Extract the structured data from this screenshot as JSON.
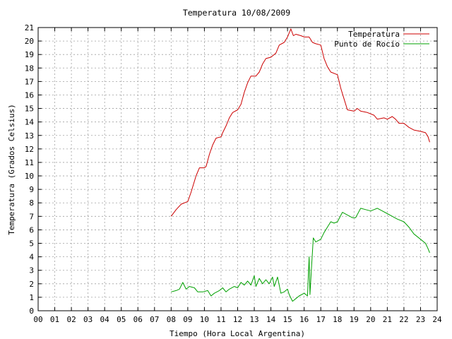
{
  "chart_data": {
    "type": "line",
    "title": "Temperatura 10/08/2009",
    "xlabel": "Tiempo (Hora Local Argentina)",
    "ylabel": "Temperatura (Grados Celsius)",
    "xlim": [
      0,
      24
    ],
    "ylim": [
      0,
      21
    ],
    "xticks": [
      "00",
      "01",
      "02",
      "03",
      "04",
      "05",
      "06",
      "07",
      "08",
      "09",
      "10",
      "11",
      "12",
      "13",
      "14",
      "15",
      "16",
      "17",
      "18",
      "19",
      "20",
      "21",
      "22",
      "23",
      "24"
    ],
    "yticks": [
      "0",
      "1",
      "2",
      "3",
      "4",
      "5",
      "6",
      "7",
      "8",
      "9",
      "10",
      "11",
      "12",
      "13",
      "14",
      "15",
      "16",
      "17",
      "18",
      "19",
      "20",
      "21"
    ],
    "grid": true,
    "legend_position": "top-right",
    "series": [
      {
        "name": "Temperatura",
        "color": "#cc0000",
        "points": [
          [
            8.0,
            7.0
          ],
          [
            8.3,
            7.5
          ],
          [
            8.6,
            7.9
          ],
          [
            9.0,
            8.1
          ],
          [
            9.2,
            8.8
          ],
          [
            9.5,
            10.0
          ],
          [
            9.7,
            10.6
          ],
          [
            10.0,
            10.6
          ],
          [
            10.1,
            10.7
          ],
          [
            10.3,
            11.6
          ],
          [
            10.5,
            12.3
          ],
          [
            10.7,
            12.8
          ],
          [
            11.0,
            12.9
          ],
          [
            11.1,
            13.2
          ],
          [
            11.3,
            13.7
          ],
          [
            11.5,
            14.3
          ],
          [
            11.7,
            14.7
          ],
          [
            12.0,
            14.9
          ],
          [
            12.2,
            15.3
          ],
          [
            12.4,
            16.2
          ],
          [
            12.6,
            16.9
          ],
          [
            12.8,
            17.4
          ],
          [
            13.1,
            17.4
          ],
          [
            13.3,
            17.7
          ],
          [
            13.5,
            18.3
          ],
          [
            13.7,
            18.7
          ],
          [
            14.0,
            18.8
          ],
          [
            14.3,
            19.1
          ],
          [
            14.5,
            19.7
          ],
          [
            14.8,
            19.9
          ],
          [
            15.0,
            20.3
          ],
          [
            15.2,
            20.9
          ],
          [
            15.35,
            20.4
          ],
          [
            15.5,
            20.5
          ],
          [
            15.8,
            20.4
          ],
          [
            16.0,
            20.3
          ],
          [
            16.3,
            20.3
          ],
          [
            16.5,
            19.9
          ],
          [
            16.7,
            19.8
          ],
          [
            17.0,
            19.7
          ],
          [
            17.2,
            18.7
          ],
          [
            17.4,
            18.1
          ],
          [
            17.6,
            17.7
          ],
          [
            18.0,
            17.5
          ],
          [
            18.2,
            16.5
          ],
          [
            18.4,
            15.7
          ],
          [
            18.6,
            14.9
          ],
          [
            19.0,
            14.8
          ],
          [
            19.2,
            15.0
          ],
          [
            19.4,
            14.8
          ],
          [
            19.8,
            14.7
          ],
          [
            20.2,
            14.5
          ],
          [
            20.4,
            14.2
          ],
          [
            20.8,
            14.3
          ],
          [
            21.0,
            14.2
          ],
          [
            21.3,
            14.4
          ],
          [
            21.5,
            14.2
          ],
          [
            21.7,
            13.9
          ],
          [
            22.0,
            13.9
          ],
          [
            22.3,
            13.6
          ],
          [
            22.6,
            13.4
          ],
          [
            23.0,
            13.3
          ],
          [
            23.3,
            13.2
          ],
          [
            23.45,
            12.9
          ],
          [
            23.55,
            12.5
          ]
        ]
      },
      {
        "name": "Punto de Rocío",
        "color": "#00a000",
        "points": [
          [
            8.0,
            1.4
          ],
          [
            8.3,
            1.5
          ],
          [
            8.5,
            1.6
          ],
          [
            8.7,
            2.1
          ],
          [
            8.9,
            1.6
          ],
          [
            9.1,
            1.8
          ],
          [
            9.4,
            1.7
          ],
          [
            9.6,
            1.4
          ],
          [
            9.9,
            1.4
          ],
          [
            10.2,
            1.5
          ],
          [
            10.4,
            1.1
          ],
          [
            10.6,
            1.3
          ],
          [
            10.9,
            1.5
          ],
          [
            11.1,
            1.7
          ],
          [
            11.3,
            1.4
          ],
          [
            11.5,
            1.6
          ],
          [
            11.8,
            1.8
          ],
          [
            12.0,
            1.7
          ],
          [
            12.2,
            2.1
          ],
          [
            12.4,
            1.9
          ],
          [
            12.6,
            2.2
          ],
          [
            12.8,
            1.9
          ],
          [
            13.0,
            2.6
          ],
          [
            13.1,
            1.8
          ],
          [
            13.3,
            2.4
          ],
          [
            13.5,
            2.0
          ],
          [
            13.7,
            2.3
          ],
          [
            13.9,
            2.0
          ],
          [
            14.1,
            2.5
          ],
          [
            14.2,
            1.8
          ],
          [
            14.4,
            2.5
          ],
          [
            14.6,
            1.3
          ],
          [
            14.8,
            1.4
          ],
          [
            15.0,
            1.6
          ],
          [
            15.1,
            1.2
          ],
          [
            15.3,
            0.7
          ],
          [
            15.5,
            0.9
          ],
          [
            15.7,
            1.1
          ],
          [
            16.0,
            1.3
          ],
          [
            16.2,
            1.1
          ],
          [
            16.3,
            4.0
          ],
          [
            16.35,
            1.2
          ],
          [
            16.45,
            3.4
          ],
          [
            16.55,
            5.4
          ],
          [
            16.7,
            5.1
          ],
          [
            17.0,
            5.3
          ],
          [
            17.2,
            5.8
          ],
          [
            17.4,
            6.2
          ],
          [
            17.6,
            6.6
          ],
          [
            17.8,
            6.5
          ],
          [
            18.0,
            6.6
          ],
          [
            18.3,
            7.3
          ],
          [
            18.6,
            7.1
          ],
          [
            18.9,
            6.9
          ],
          [
            19.1,
            6.9
          ],
          [
            19.4,
            7.6
          ],
          [
            19.7,
            7.5
          ],
          [
            20.0,
            7.4
          ],
          [
            20.2,
            7.5
          ],
          [
            20.4,
            7.6
          ],
          [
            20.7,
            7.4
          ],
          [
            21.0,
            7.2
          ],
          [
            21.3,
            7.0
          ],
          [
            21.6,
            6.8
          ],
          [
            22.0,
            6.6
          ],
          [
            22.3,
            6.2
          ],
          [
            22.6,
            5.7
          ],
          [
            23.0,
            5.3
          ],
          [
            23.3,
            5.0
          ],
          [
            23.45,
            4.6
          ],
          [
            23.55,
            4.3
          ]
        ]
      }
    ]
  }
}
